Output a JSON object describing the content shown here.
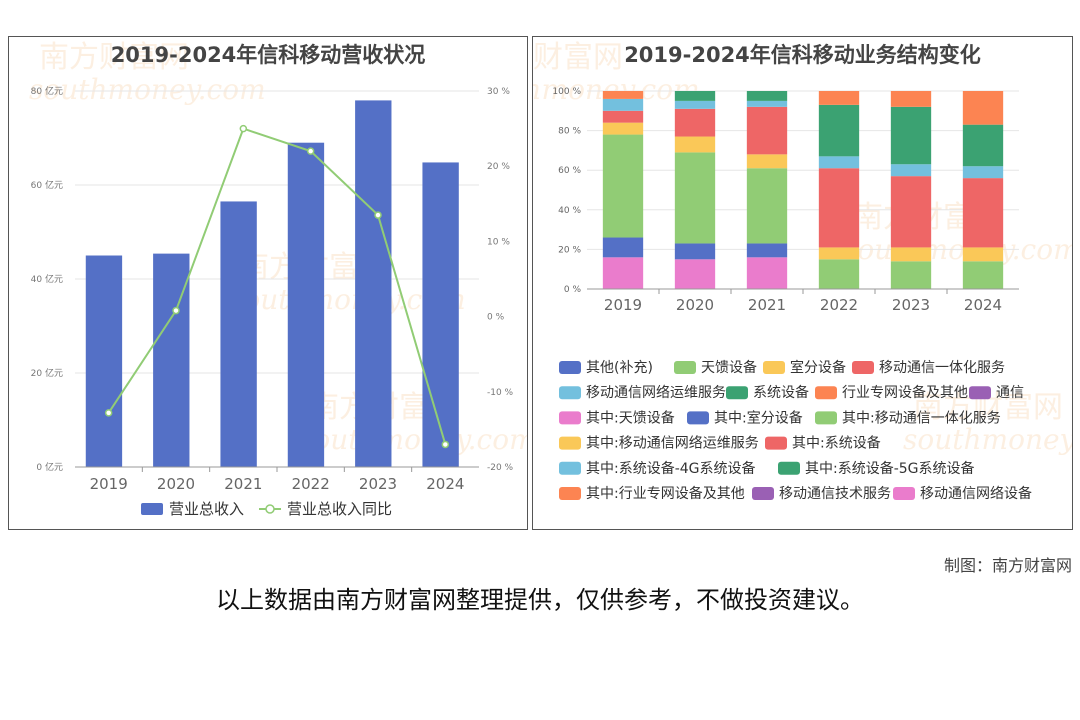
{
  "charts": {
    "left": {
      "title": "2019-2024年信科移动营收状况",
      "watermark_cn": "南方财富网",
      "watermark_en": "southmoney.com"
    },
    "right": {
      "title": "2019-2024年信科移动业务结构变化",
      "watermark_cn": "南方财富网",
      "watermark_en": "southmoney.com"
    }
  },
  "footer": {
    "credit": "制图：南方财富网",
    "disclaimer": "以上数据由南方财富网整理提供，仅供参考，不做投资建议。"
  },
  "colors": {
    "bar": "#5470c6",
    "line": "#91cc75"
  },
  "chart_data": [
    {
      "type": "bar",
      "title": "2019-2024年信科移动营收状况",
      "categories": [
        "2019",
        "2020",
        "2021",
        "2022",
        "2023",
        "2024"
      ],
      "y_left": {
        "ticks": [
          "0 亿元",
          "20 亿元",
          "40 亿元",
          "60 亿元",
          "80 亿元"
        ],
        "min": 0,
        "max": 80
      },
      "y_right": {
        "ticks": [
          "-20 %",
          "-10 %",
          "0 %",
          "10 %",
          "20 %",
          "30 %"
        ],
        "min": -20,
        "max": 30
      },
      "series": [
        {
          "name": "营业总收入",
          "type": "bar",
          "axis": "left",
          "color": "#5470c6",
          "values": [
            45,
            45.4,
            56.5,
            69,
            78,
            64.8
          ]
        },
        {
          "name": "营业总收入同比",
          "type": "line",
          "axis": "right",
          "color": "#91cc75",
          "values": [
            -12.8,
            0.8,
            25,
            22,
            13.5,
            -17
          ]
        }
      ],
      "grid": true,
      "legend": "bottom"
    },
    {
      "type": "bar",
      "stacked": true,
      "title": "2019-2024年信科移动业务结构变化",
      "categories": [
        "2019",
        "2020",
        "2021",
        "2022",
        "2023",
        "2024"
      ],
      "y": {
        "ticks": [
          "0 %",
          "20 %",
          "40 %",
          "60 %",
          "80 %",
          "100 %"
        ],
        "min": 0,
        "max": 100
      },
      "legend_entries": [
        {
          "name": "其他(补充)",
          "color": "#5470c6"
        },
        {
          "name": "天馈设备",
          "color": "#91cc75"
        },
        {
          "name": "室分设备",
          "color": "#fac858"
        },
        {
          "name": "移动通信一体化服务",
          "color": "#ee6666"
        },
        {
          "name": "移动通信网络运维服务",
          "color": "#73c0de"
        },
        {
          "name": "系统设备",
          "color": "#3ba272"
        },
        {
          "name": "行业专网设备及其他",
          "color": "#fc8452"
        },
        {
          "name": "通信",
          "color": "#9a60b4"
        },
        {
          "name": "其中:天馈设备",
          "color": "#ea7ccc"
        },
        {
          "name": "其中:室分设备",
          "color": "#5470c6"
        },
        {
          "name": "其中:移动通信一体化服务",
          "color": "#91cc75"
        },
        {
          "name": "其中:移动通信网络运维服务",
          "color": "#fac858"
        },
        {
          "name": "其中:系统设备",
          "color": "#ee6666"
        },
        {
          "name": "其中:系统设备-4G系统设备",
          "color": "#73c0de"
        },
        {
          "name": "其中:系统设备-5G系统设备",
          "color": "#3ba272"
        },
        {
          "name": "其中:行业专网设备及其他",
          "color": "#fc8452"
        },
        {
          "name": "移动通信技术服务",
          "color": "#9a60b4"
        },
        {
          "name": "移动通信网络设备",
          "color": "#ea7ccc"
        }
      ],
      "stacks": [
        [
          {
            "name": "移动通信网络设备",
            "color": "#ea7ccc",
            "value": 16
          },
          {
            "name": "其中:室分设备",
            "color": "#5470c6",
            "value": 10
          },
          {
            "name": "其中:移动通信一体化服务",
            "color": "#91cc75",
            "value": 52
          },
          {
            "name": "其中:移动通信网络运维服务",
            "color": "#fac858",
            "value": 6
          },
          {
            "name": "其中:系统设备",
            "color": "#ee6666",
            "value": 6
          },
          {
            "name": "其中:系统设备-4G系统设备",
            "color": "#73c0de",
            "value": 6
          },
          {
            "name": "其中:行业专网设备及其他",
            "color": "#fc8452",
            "value": 4
          }
        ],
        [
          {
            "name": "移动通信网络设备",
            "color": "#ea7ccc",
            "value": 15
          },
          {
            "name": "其中:室分设备",
            "color": "#5470c6",
            "value": 8
          },
          {
            "name": "其中:移动通信一体化服务",
            "color": "#91cc75",
            "value": 46
          },
          {
            "name": "其中:移动通信网络运维服务",
            "color": "#fac858",
            "value": 8
          },
          {
            "name": "其中:系统设备",
            "color": "#ee6666",
            "value": 14
          },
          {
            "name": "其中:系统设备-4G系统设备",
            "color": "#73c0de",
            "value": 4
          },
          {
            "name": "其中:系统设备-5G系统设备",
            "color": "#3ba272",
            "value": 5
          }
        ],
        [
          {
            "name": "移动通信网络设备",
            "color": "#ea7ccc",
            "value": 16
          },
          {
            "name": "其中:室分设备",
            "color": "#5470c6",
            "value": 7
          },
          {
            "name": "其中:移动通信一体化服务",
            "color": "#91cc75",
            "value": 38
          },
          {
            "name": "其中:移动通信网络运维服务",
            "color": "#fac858",
            "value": 7
          },
          {
            "name": "其中:系统设备",
            "color": "#ee6666",
            "value": 24
          },
          {
            "name": "其中:系统设备-4G系统设备",
            "color": "#73c0de",
            "value": 3
          },
          {
            "name": "其中:系统设备-5G系统设备",
            "color": "#3ba272",
            "value": 5
          }
        ],
        [
          {
            "name": "天馈设备",
            "color": "#91cc75",
            "value": 15
          },
          {
            "name": "室分设备",
            "color": "#fac858",
            "value": 6
          },
          {
            "name": "移动通信一体化服务",
            "color": "#ee6666",
            "value": 40
          },
          {
            "name": "移动通信网络运维服务",
            "color": "#73c0de",
            "value": 6
          },
          {
            "name": "系统设备",
            "color": "#3ba272",
            "value": 26
          },
          {
            "name": "行业专网设备及其他",
            "color": "#fc8452",
            "value": 7
          }
        ],
        [
          {
            "name": "天馈设备",
            "color": "#91cc75",
            "value": 14
          },
          {
            "name": "室分设备",
            "color": "#fac858",
            "value": 7
          },
          {
            "name": "移动通信一体化服务",
            "color": "#ee6666",
            "value": 36
          },
          {
            "name": "移动通信网络运维服务",
            "color": "#73c0de",
            "value": 6
          },
          {
            "name": "系统设备",
            "color": "#3ba272",
            "value": 29
          },
          {
            "name": "行业专网设备及其他",
            "color": "#fc8452",
            "value": 8
          }
        ],
        [
          {
            "name": "天馈设备",
            "color": "#91cc75",
            "value": 14
          },
          {
            "name": "室分设备",
            "color": "#fac858",
            "value": 7
          },
          {
            "name": "移动通信一体化服务",
            "color": "#ee6666",
            "value": 35
          },
          {
            "name": "移动通信网络运维服务",
            "color": "#73c0de",
            "value": 6
          },
          {
            "name": "系统设备",
            "color": "#3ba272",
            "value": 21
          },
          {
            "name": "行业专网设备及其他",
            "color": "#fc8452",
            "value": 17
          }
        ]
      ],
      "grid": true,
      "legend": "bottom"
    }
  ]
}
